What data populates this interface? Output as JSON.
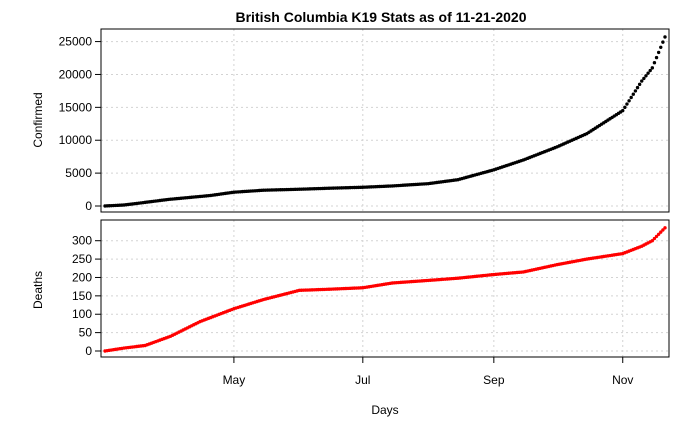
{
  "chart_data": {
    "type": "scatter",
    "title": "British Columbia K19 Stats as of 11-21-2020",
    "xlabel": "Days",
    "x_start": "2020-03-01",
    "x_end": "2020-11-21",
    "x_ticks": [
      {
        "date": "2020-05-01",
        "label": "May"
      },
      {
        "date": "2020-07-01",
        "label": "Jul"
      },
      {
        "date": "2020-09-01",
        "label": "Sep"
      },
      {
        "date": "2020-11-01",
        "label": "Nov"
      }
    ],
    "grid": true,
    "panels": [
      {
        "name": "confirmed",
        "ylabel": "Confirmed",
        "ylim": [
          0,
          26000
        ],
        "yticks": [
          0,
          5000,
          10000,
          15000,
          20000,
          25000
        ],
        "color": "#000000",
        "series": [
          {
            "date": "2020-03-01",
            "value": 8
          },
          {
            "date": "2020-03-10",
            "value": 150
          },
          {
            "date": "2020-03-20",
            "value": 550
          },
          {
            "date": "2020-03-31",
            "value": 1000
          },
          {
            "date": "2020-04-10",
            "value": 1300
          },
          {
            "date": "2020-04-20",
            "value": 1600
          },
          {
            "date": "2020-05-01",
            "value": 2100
          },
          {
            "date": "2020-05-15",
            "value": 2400
          },
          {
            "date": "2020-06-01",
            "value": 2550
          },
          {
            "date": "2020-06-15",
            "value": 2700
          },
          {
            "date": "2020-07-01",
            "value": 2850
          },
          {
            "date": "2020-07-15",
            "value": 3050
          },
          {
            "date": "2020-08-01",
            "value": 3400
          },
          {
            "date": "2020-08-15",
            "value": 4000
          },
          {
            "date": "2020-09-01",
            "value": 5500
          },
          {
            "date": "2020-09-15",
            "value": 7000
          },
          {
            "date": "2020-10-01",
            "value": 9000
          },
          {
            "date": "2020-10-15",
            "value": 11000
          },
          {
            "date": "2020-11-01",
            "value": 14500
          },
          {
            "date": "2020-11-10",
            "value": 19000
          },
          {
            "date": "2020-11-15",
            "value": 21000
          },
          {
            "date": "2020-11-21",
            "value": 25700
          }
        ]
      },
      {
        "name": "deaths",
        "ylabel": "Deaths",
        "ylim": [
          0,
          340
        ],
        "yticks": [
          0,
          50,
          100,
          150,
          200,
          250,
          300
        ],
        "color": "#ff0000",
        "series": [
          {
            "date": "2020-03-01",
            "value": 0
          },
          {
            "date": "2020-03-10",
            "value": 8
          },
          {
            "date": "2020-03-20",
            "value": 15
          },
          {
            "date": "2020-04-01",
            "value": 40
          },
          {
            "date": "2020-04-15",
            "value": 80
          },
          {
            "date": "2020-05-01",
            "value": 115
          },
          {
            "date": "2020-05-15",
            "value": 140
          },
          {
            "date": "2020-06-01",
            "value": 165
          },
          {
            "date": "2020-06-15",
            "value": 168
          },
          {
            "date": "2020-07-01",
            "value": 172
          },
          {
            "date": "2020-07-15",
            "value": 185
          },
          {
            "date": "2020-08-01",
            "value": 192
          },
          {
            "date": "2020-08-15",
            "value": 198
          },
          {
            "date": "2020-09-01",
            "value": 208
          },
          {
            "date": "2020-09-15",
            "value": 215
          },
          {
            "date": "2020-10-01",
            "value": 235
          },
          {
            "date": "2020-10-15",
            "value": 250
          },
          {
            "date": "2020-11-01",
            "value": 265
          },
          {
            "date": "2020-11-10",
            "value": 285
          },
          {
            "date": "2020-11-15",
            "value": 300
          },
          {
            "date": "2020-11-21",
            "value": 335
          }
        ]
      }
    ]
  }
}
